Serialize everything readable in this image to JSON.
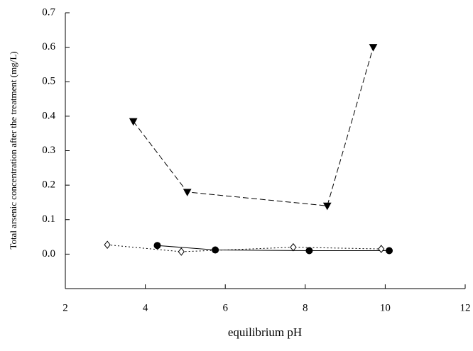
{
  "chart_data": {
    "type": "line",
    "x_label": "equilibrium pH",
    "y_label": "Total arsenic concentration after the treatment (mg/L)",
    "xlim": [
      2,
      12
    ],
    "xticks": [
      2,
      4,
      6,
      8,
      10,
      12
    ],
    "ylim": [
      -0.1,
      0.7
    ],
    "yticks": [
      {
        "value": 0,
        "label": "0.0"
      },
      0.1,
      0.2,
      0.3,
      0.4,
      0.5,
      0.6,
      0.7
    ],
    "grid": false,
    "series": [
      {
        "color": "#000000",
        "linestyle": "dashed",
        "marker": "triangle-down",
        "filled": true,
        "x": [
          3.7,
          5.05,
          8.55,
          9.7
        ],
        "values": [
          0.385,
          0.18,
          0.14,
          0.6
        ]
      },
      {
        "color": "#000000",
        "linestyle": "solid",
        "marker": "circle",
        "filled": true,
        "x": [
          4.3,
          5.75,
          8.1,
          10.1
        ],
        "values": [
          0.025,
          0.012,
          0.01,
          0.01
        ]
      },
      {
        "color": "#000000",
        "linestyle": "dotted",
        "marker": "diamond",
        "filled": false,
        "x": [
          3.05,
          4.9,
          7.7,
          9.9
        ],
        "values": [
          0.027,
          0.007,
          0.02,
          0.015
        ]
      }
    ]
  }
}
